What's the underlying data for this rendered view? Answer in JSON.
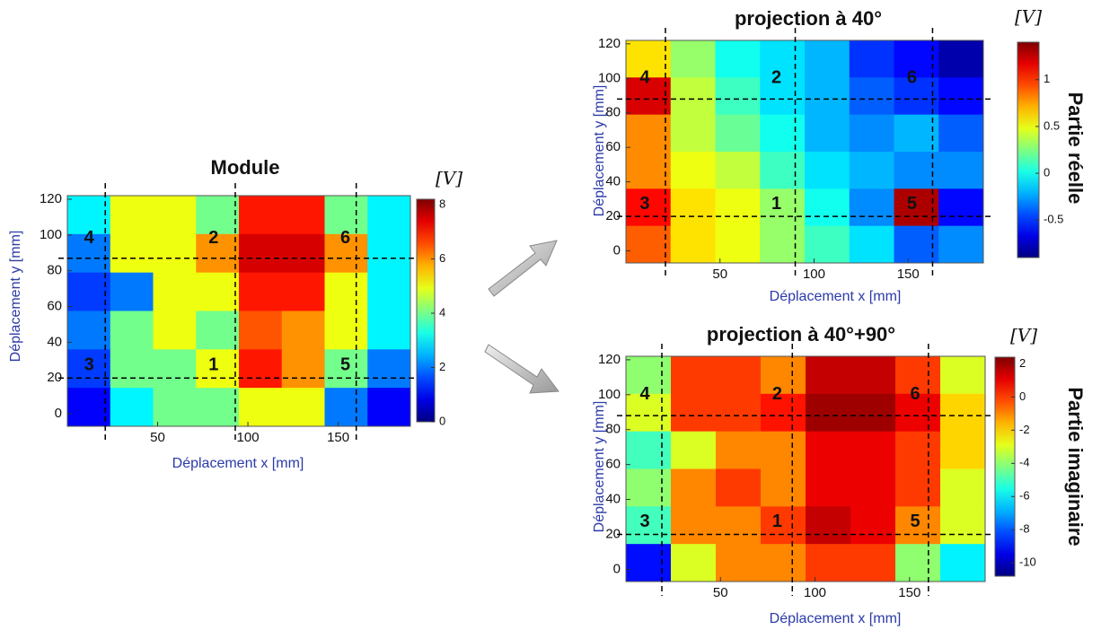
{
  "chart_data": [
    {
      "type": "heatmap",
      "title": "Module",
      "xlabel": "Déplacement x [mm]",
      "ylabel": "Déplacement y [mm]",
      "xlim": [
        0,
        190
      ],
      "ylim": [
        -7,
        122
      ],
      "xticks": [
        50,
        100,
        150
      ],
      "yticks": [
        0,
        20,
        40,
        60,
        80,
        100,
        120
      ],
      "zlabel": "[V]",
      "zlim": [
        0,
        8.2
      ],
      "zticks": [
        0,
        2,
        4,
        6,
        8
      ],
      "vlines": [
        21,
        93,
        160
      ],
      "hlines": [
        87,
        20
      ],
      "annotations": [
        {
          "text": "4",
          "x": 12,
          "y": 98
        },
        {
          "text": "2",
          "x": 81,
          "y": 98
        },
        {
          "text": "6",
          "x": 154,
          "y": 98
        },
        {
          "text": "3",
          "x": 12,
          "y": 27
        },
        {
          "text": "1",
          "x": 81,
          "y": 27
        },
        {
          "text": "5",
          "x": 154,
          "y": 27
        }
      ],
      "z": [
        [
          3,
          5,
          5,
          4,
          7,
          7,
          4,
          3
        ],
        [
          2,
          5,
          5,
          6,
          7.5,
          7.5,
          6,
          3
        ],
        [
          1.5,
          2,
          5,
          5,
          7,
          7,
          5,
          3
        ],
        [
          2,
          4,
          5,
          4,
          6.5,
          6,
          5,
          3
        ],
        [
          1.5,
          4,
          4,
          5,
          7,
          6,
          4,
          2
        ],
        [
          1,
          3,
          4,
          4,
          5,
          5,
          2,
          1
        ]
      ]
    },
    {
      "type": "heatmap",
      "title": "projection à 40°",
      "xlabel": "Déplacement x [mm]",
      "ylabel": "Déplacement y [mm]",
      "side_label": "Partie réelle",
      "xlim": [
        0,
        190
      ],
      "ylim": [
        -7,
        122
      ],
      "xticks": [
        50,
        100,
        150
      ],
      "yticks": [
        0,
        20,
        40,
        60,
        80,
        100,
        120
      ],
      "zlabel": "[V]",
      "zlim": [
        -0.9,
        1.4
      ],
      "zticks": [
        -0.5,
        0,
        0.5,
        1
      ],
      "vlines": [
        21,
        90,
        163
      ],
      "hlines": [
        88,
        20
      ],
      "annotations": [
        {
          "text": "4",
          "x": 10,
          "y": 100
        },
        {
          "text": "2",
          "x": 80,
          "y": 100
        },
        {
          "text": "6",
          "x": 152,
          "y": 100
        },
        {
          "text": "3",
          "x": 10,
          "y": 27
        },
        {
          "text": "1",
          "x": 80,
          "y": 27
        },
        {
          "text": "5",
          "x": 152,
          "y": 27
        }
      ],
      "z": [
        [
          0.6,
          0.3,
          0,
          -0.1,
          -0.2,
          -0.5,
          -0.6,
          -0.8
        ],
        [
          1.2,
          0.4,
          0.1,
          -0.1,
          -0.2,
          -0.4,
          -0.5,
          -0.6
        ],
        [
          0.8,
          0.4,
          0.2,
          0,
          -0.2,
          -0.3,
          -0.2,
          -0.4
        ],
        [
          0.8,
          0.5,
          0.4,
          0.1,
          -0.1,
          -0.2,
          -0.3,
          -0.3
        ],
        [
          1.1,
          0.6,
          0.5,
          0.3,
          0,
          -0.3,
          1.3,
          -0.6
        ],
        [
          0.9,
          0.6,
          0.5,
          0.3,
          0.1,
          -0.1,
          -0.4,
          -0.3
        ]
      ]
    },
    {
      "type": "heatmap",
      "title": "projection à 40°+90°",
      "xlabel": "Déplacement x [mm]",
      "ylabel": "Déplacement y [mm]",
      "side_label": "Partie imaginaire",
      "xlim": [
        0,
        190
      ],
      "ylim": [
        -7,
        122
      ],
      "xticks": [
        50,
        100,
        150
      ],
      "yticks": [
        0,
        20,
        40,
        60,
        80,
        100,
        120
      ],
      "zlabel": "[V]",
      "zlim": [
        -10.8,
        2.4
      ],
      "zticks": [
        -10,
        -8,
        -6,
        -4,
        -2,
        0,
        2
      ],
      "vlines": [
        19,
        88,
        160
      ],
      "hlines": [
        88,
        20
      ],
      "annotations": [
        {
          "text": "4",
          "x": 10,
          "y": 100
        },
        {
          "text": "2",
          "x": 80,
          "y": 100
        },
        {
          "text": "6",
          "x": 153,
          "y": 100
        },
        {
          "text": "3",
          "x": 10,
          "y": 27
        },
        {
          "text": "1",
          "x": 80,
          "y": 27
        },
        {
          "text": "5",
          "x": 153,
          "y": 27
        }
      ],
      "z": [
        [
          -4,
          0,
          0,
          -1,
          1.5,
          1.5,
          0,
          -3
        ],
        [
          -3,
          0,
          0,
          0.5,
          2,
          2,
          1,
          -2
        ],
        [
          -5,
          -3,
          -1,
          -1,
          1,
          1,
          0,
          -2
        ],
        [
          -4,
          -1,
          0,
          -1,
          1,
          1,
          0,
          -3
        ],
        [
          -5,
          -1,
          -1,
          0,
          1.5,
          1,
          -1,
          -3
        ],
        [
          -9,
          -3,
          -1,
          -1,
          0,
          0,
          -4,
          -6
        ]
      ]
    }
  ]
}
